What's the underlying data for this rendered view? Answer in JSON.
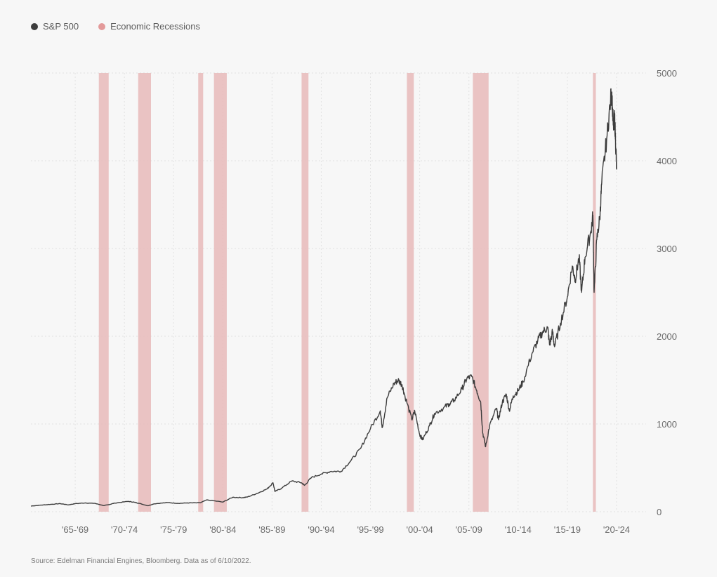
{
  "colors": {
    "series": "#3d3d3d",
    "recession": "#e8bcbc",
    "recession_dot": "#e39a9a",
    "grid": "#e2e2e2"
  },
  "legend": {
    "series_label": "S&P 500",
    "recession_label": "Economic Recessions"
  },
  "source": "Source: Edelman Financial Engines, Bloomberg. Data as of 6/10/2022.",
  "chart_data": {
    "type": "line",
    "title": "",
    "xlabel": "",
    "ylabel": "",
    "x_range": [
      1963.0,
      2025.5
    ],
    "ylim": [
      0,
      5000
    ],
    "y_ticks": [
      0,
      1000,
      2000,
      3000,
      4000,
      5000
    ],
    "y_axis_side": "right",
    "grid": "dotted",
    "legend_position": "top-left",
    "x_ticks": [
      {
        "label": "'65-'69",
        "x": 1967.5
      },
      {
        "label": "'70-'74",
        "x": 1972.5
      },
      {
        "label": "'75-'79",
        "x": 1977.5
      },
      {
        "label": "'80-'84",
        "x": 1982.5
      },
      {
        "label": "'85-'89",
        "x": 1987.5
      },
      {
        "label": "'90-'94",
        "x": 1992.5
      },
      {
        "label": "'95-'99",
        "x": 1997.5
      },
      {
        "label": "'00-'04",
        "x": 2002.5
      },
      {
        "label": "'05-'09",
        "x": 2007.5
      },
      {
        "label": "'10-'14",
        "x": 2012.5
      },
      {
        "label": "'15-'19",
        "x": 2017.5
      },
      {
        "label": "'20-'24",
        "x": 2022.5
      }
    ],
    "recessions": [
      {
        "start": 1969.9,
        "end": 1970.9
      },
      {
        "start": 1973.9,
        "end": 1975.2
      },
      {
        "start": 1980.0,
        "end": 1980.5
      },
      {
        "start": 1981.6,
        "end": 1982.9
      },
      {
        "start": 1990.5,
        "end": 1991.2
      },
      {
        "start": 2001.2,
        "end": 2001.9
      },
      {
        "start": 2007.9,
        "end": 2009.5
      },
      {
        "start": 2020.1,
        "end": 2020.4
      }
    ],
    "series": [
      {
        "name": "S&P 500",
        "points": [
          [
            1963.0,
            65
          ],
          [
            1964.0,
            75
          ],
          [
            1965.0,
            84
          ],
          [
            1966.0,
            92
          ],
          [
            1966.8,
            78
          ],
          [
            1967.5,
            92
          ],
          [
            1968.5,
            100
          ],
          [
            1969.5,
            95
          ],
          [
            1970.4,
            70
          ],
          [
            1970.9,
            80
          ],
          [
            1971.5,
            98
          ],
          [
            1972.9,
            118
          ],
          [
            1973.5,
            108
          ],
          [
            1974.0,
            95
          ],
          [
            1974.9,
            68
          ],
          [
            1975.5,
            90
          ],
          [
            1976.9,
            105
          ],
          [
            1977.9,
            95
          ],
          [
            1978.9,
            100
          ],
          [
            1980.2,
            102
          ],
          [
            1980.9,
            135
          ],
          [
            1982.5,
            110
          ],
          [
            1983.5,
            165
          ],
          [
            1984.5,
            160
          ],
          [
            1985.0,
            168
          ],
          [
            1986.0,
            210
          ],
          [
            1987.0,
            260
          ],
          [
            1987.6,
            330
          ],
          [
            1987.8,
            230
          ],
          [
            1988.5,
            270
          ],
          [
            1989.5,
            350
          ],
          [
            1990.5,
            330
          ],
          [
            1990.8,
            300
          ],
          [
            1991.5,
            390
          ],
          [
            1992.5,
            430
          ],
          [
            1993.5,
            460
          ],
          [
            1994.5,
            460
          ],
          [
            1995.5,
            580
          ],
          [
            1996.5,
            720
          ],
          [
            1997.5,
            950
          ],
          [
            1998.5,
            1150
          ],
          [
            1998.7,
            960
          ],
          [
            1999.2,
            1300
          ],
          [
            1999.9,
            1460
          ],
          [
            2000.3,
            1500
          ],
          [
            2000.7,
            1450
          ],
          [
            2001.0,
            1320
          ],
          [
            2001.7,
            1050
          ],
          [
            2002.0,
            1150
          ],
          [
            2002.5,
            880
          ],
          [
            2002.8,
            820
          ],
          [
            2003.5,
            980
          ],
          [
            2004.0,
            1120
          ],
          [
            2004.9,
            1180
          ],
          [
            2005.5,
            1230
          ],
          [
            2006.0,
            1270
          ],
          [
            2006.8,
            1400
          ],
          [
            2007.3,
            1520
          ],
          [
            2007.8,
            1540
          ],
          [
            2008.3,
            1380
          ],
          [
            2008.7,
            1250
          ],
          [
            2008.9,
            900
          ],
          [
            2009.2,
            740
          ],
          [
            2009.6,
            980
          ],
          [
            2010.3,
            1180
          ],
          [
            2010.5,
            1050
          ],
          [
            2010.9,
            1250
          ],
          [
            2011.3,
            1340
          ],
          [
            2011.6,
            1150
          ],
          [
            2012.0,
            1320
          ],
          [
            2012.5,
            1380
          ],
          [
            2013.0,
            1480
          ],
          [
            2013.9,
            1800
          ],
          [
            2014.5,
            1950
          ],
          [
            2015.0,
            2050
          ],
          [
            2015.5,
            2100
          ],
          [
            2015.7,
            1900
          ],
          [
            2016.0,
            2050
          ],
          [
            2016.2,
            1880
          ],
          [
            2016.8,
            2150
          ],
          [
            2017.5,
            2450
          ],
          [
            2018.0,
            2800
          ],
          [
            2018.3,
            2650
          ],
          [
            2018.7,
            2900
          ],
          [
            2018.95,
            2500
          ],
          [
            2019.3,
            2900
          ],
          [
            2019.9,
            3200
          ],
          [
            2020.1,
            3380
          ],
          [
            2020.22,
            2500
          ],
          [
            2020.5,
            3100
          ],
          [
            2020.8,
            3350
          ],
          [
            2021.0,
            3750
          ],
          [
            2021.5,
            4250
          ],
          [
            2021.9,
            4700
          ],
          [
            2022.0,
            4780
          ],
          [
            2022.2,
            4350
          ],
          [
            2022.3,
            4500
          ],
          [
            2022.45,
            4100
          ],
          [
            2022.5,
            3900
          ]
        ]
      }
    ]
  }
}
